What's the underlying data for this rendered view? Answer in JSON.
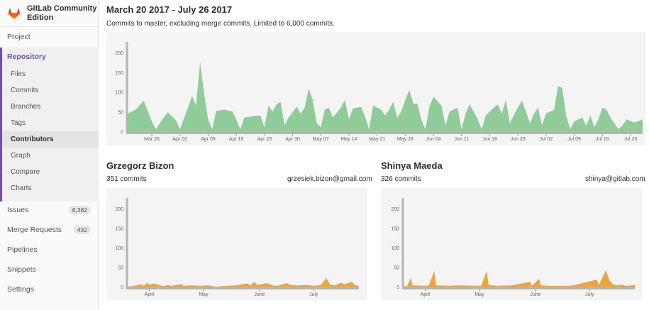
{
  "brand": {
    "name": "GitLab Community Edition"
  },
  "sidebar": {
    "project": "Project",
    "repository": "Repository",
    "repo_items": [
      "Files",
      "Commits",
      "Branches",
      "Tags",
      "Contributors",
      "Graph",
      "Compare",
      "Charts"
    ],
    "issues": {
      "label": "Issues",
      "count": "8,382"
    },
    "merge_requests": {
      "label": "Merge Requests",
      "count": "432"
    },
    "pipelines": "Pipelines",
    "snippets": "Snippets",
    "settings": "Settings"
  },
  "header": {
    "title": "March 20 2017 - July 26 2017",
    "subtitle": "Commits to master, excluding merge commits. Limited to 6,000 commits."
  },
  "contributors": [
    {
      "name": "Grzegorz Bizon",
      "commits": "351 commits",
      "email": "grzesiek.bizon@gmail.com"
    },
    {
      "name": "Shinya Maeda",
      "commits": "326 commits",
      "email": "shinya@gitlab.com"
    }
  ],
  "colors": {
    "main_area": "#8fcc99",
    "contributor_area": "#f0a23c",
    "axis": "#b5b5b5",
    "accent": "#6b4fbb"
  },
  "chart_data": [
    {
      "type": "area",
      "yticks": [
        "0",
        "50",
        "100",
        "150",
        "200"
      ],
      "ylim": [
        0,
        220
      ],
      "xlim": [
        0,
        128
      ],
      "xticks": [
        {
          "label": "Mar 26",
          "day": 6
        },
        {
          "label": "Apr 02",
          "day": 13
        },
        {
          "label": "Apr 09",
          "day": 20
        },
        {
          "label": "Apr 16",
          "day": 27
        },
        {
          "label": "Apr 23",
          "day": 34
        },
        {
          "label": "Apr 30",
          "day": 41
        },
        {
          "label": "May 07",
          "day": 48
        },
        {
          "label": "May 14",
          "day": 55
        },
        {
          "label": "May 21",
          "day": 62
        },
        {
          "label": "May 28",
          "day": 69
        },
        {
          "label": "Jun 04",
          "day": 76
        },
        {
          "label": "Jun 11",
          "day": 83
        },
        {
          "label": "Jun 18",
          "day": 90
        },
        {
          "label": "Jun 25",
          "day": 97
        },
        {
          "label": "Jul 02",
          "day": 104
        },
        {
          "label": "Jul 09",
          "day": 111
        },
        {
          "label": "Jul 16",
          "day": 118
        },
        {
          "label": "Jul 23",
          "day": 125
        }
      ],
      "series": [
        {
          "values": [
            [
              0,
              45
            ],
            [
              2,
              55
            ],
            [
              4,
              78
            ],
            [
              6,
              25
            ],
            [
              7,
              5
            ],
            [
              9,
              35
            ],
            [
              10,
              48
            ],
            [
              12,
              28
            ],
            [
              13,
              5
            ],
            [
              15,
              60
            ],
            [
              16,
              90
            ],
            [
              17,
              65
            ],
            [
              18,
              175
            ],
            [
              19,
              95
            ],
            [
              20,
              30
            ],
            [
              21,
              5
            ],
            [
              22,
              52
            ],
            [
              24,
              55
            ],
            [
              26,
              50
            ],
            [
              27,
              30
            ],
            [
              28,
              5
            ],
            [
              29,
              35
            ],
            [
              31,
              38
            ],
            [
              33,
              40
            ],
            [
              34,
              10
            ],
            [
              35,
              65
            ],
            [
              36,
              50
            ],
            [
              37,
              68
            ],
            [
              38,
              75
            ],
            [
              39,
              15
            ],
            [
              40,
              35
            ],
            [
              42,
              62
            ],
            [
              43,
              45
            ],
            [
              44,
              60
            ],
            [
              45,
              108
            ],
            [
              46,
              80
            ],
            [
              47,
              20
            ],
            [
              48,
              10
            ],
            [
              49,
              55
            ],
            [
              50,
              60
            ],
            [
              51,
              35
            ],
            [
              53,
              60
            ],
            [
              54,
              80
            ],
            [
              55,
              30
            ],
            [
              56,
              58
            ],
            [
              58,
              62
            ],
            [
              59,
              38
            ],
            [
              60,
              5
            ],
            [
              61,
              65
            ],
            [
              63,
              55
            ],
            [
              64,
              40
            ],
            [
              65,
              55
            ],
            [
              66,
              75
            ],
            [
              67,
              35
            ],
            [
              68,
              50
            ],
            [
              69,
              80
            ],
            [
              70,
              105
            ],
            [
              71,
              70
            ],
            [
              72,
              70
            ],
            [
              73,
              30
            ],
            [
              74,
              5
            ],
            [
              75,
              62
            ],
            [
              76,
              88
            ],
            [
              78,
              65
            ],
            [
              79,
              15
            ],
            [
              80,
              50
            ],
            [
              82,
              60
            ],
            [
              83,
              5
            ],
            [
              84,
              45
            ],
            [
              85,
              68
            ],
            [
              86,
              50
            ],
            [
              87,
              30
            ],
            [
              88,
              5
            ],
            [
              89,
              40
            ],
            [
              91,
              60
            ],
            [
              92,
              68
            ],
            [
              93,
              45
            ],
            [
              94,
              80
            ],
            [
              95,
              20
            ],
            [
              96,
              42
            ],
            [
              98,
              78
            ],
            [
              99,
              50
            ],
            [
              100,
              20
            ],
            [
              101,
              45
            ],
            [
              102,
              60
            ],
            [
              103,
              15
            ],
            [
              104,
              45
            ],
            [
              106,
              55
            ],
            [
              107,
              115
            ],
            [
              108,
              110
            ],
            [
              109,
              40
            ],
            [
              110,
              5
            ],
            [
              111,
              25
            ],
            [
              113,
              35
            ],
            [
              114,
              15
            ],
            [
              115,
              40
            ],
            [
              116,
              10
            ],
            [
              117,
              30
            ],
            [
              118,
              60
            ],
            [
              119,
              55
            ],
            [
              120,
              35
            ],
            [
              122,
              5
            ],
            [
              123,
              15
            ],
            [
              124,
              30
            ],
            [
              126,
              22
            ],
            [
              128,
              30
            ]
          ]
        }
      ]
    },
    {
      "type": "area",
      "yticks": [
        "0",
        "50",
        "100",
        "150",
        "200"
      ],
      "ylim": [
        0,
        220
      ],
      "xlim": [
        0,
        128
      ],
      "xticks": [
        {
          "label": "April",
          "day": 12
        },
        {
          "label": "May",
          "day": 42
        },
        {
          "label": "June",
          "day": 73
        },
        {
          "label": "July",
          "day": 103
        }
      ],
      "series": [
        {
          "values": [
            [
              0,
              0
            ],
            [
              5,
              3
            ],
            [
              7,
              6
            ],
            [
              9,
              2
            ],
            [
              11,
              10
            ],
            [
              12,
              4
            ],
            [
              14,
              8
            ],
            [
              16,
              6
            ],
            [
              18,
              3
            ],
            [
              20,
              1
            ],
            [
              22,
              4
            ],
            [
              24,
              2
            ],
            [
              30,
              6
            ],
            [
              31,
              2
            ],
            [
              35,
              3
            ],
            [
              40,
              2
            ],
            [
              45,
              3
            ],
            [
              49,
              0
            ],
            [
              55,
              2
            ],
            [
              60,
              3
            ],
            [
              66,
              8
            ],
            [
              68,
              3
            ],
            [
              70,
              12
            ],
            [
              72,
              4
            ],
            [
              77,
              9
            ],
            [
              80,
              3
            ],
            [
              83,
              2
            ],
            [
              88,
              9
            ],
            [
              90,
              4
            ],
            [
              94,
              3
            ],
            [
              100,
              4
            ],
            [
              103,
              2
            ],
            [
              107,
              4
            ],
            [
              110,
              22
            ],
            [
              112,
              5
            ],
            [
              115,
              3
            ],
            [
              118,
              10
            ],
            [
              120,
              6
            ],
            [
              124,
              12
            ],
            [
              126,
              4
            ],
            [
              128,
              1
            ]
          ]
        }
      ]
    },
    {
      "type": "area",
      "yticks": [
        "0",
        "50",
        "100",
        "150",
        "200"
      ],
      "ylim": [
        0,
        220
      ],
      "xlim": [
        0,
        128
      ],
      "xticks": [
        {
          "label": "April",
          "day": 12
        },
        {
          "label": "May",
          "day": 42
        },
        {
          "label": "June",
          "day": 73
        },
        {
          "label": "July",
          "day": 103
        }
      ],
      "series": [
        {
          "values": [
            [
              0,
              0
            ],
            [
              2,
              2
            ],
            [
              4,
              22
            ],
            [
              5,
              3
            ],
            [
              12,
              2
            ],
            [
              14,
              3
            ],
            [
              17,
              40
            ],
            [
              18,
              3
            ],
            [
              25,
              2
            ],
            [
              30,
              3
            ],
            [
              43,
              2
            ],
            [
              46,
              40
            ],
            [
              47,
              4
            ],
            [
              52,
              2
            ],
            [
              60,
              3
            ],
            [
              70,
              12
            ],
            [
              71,
              2
            ],
            [
              75,
              20
            ],
            [
              76,
              3
            ],
            [
              80,
              2
            ],
            [
              90,
              2
            ],
            [
              94,
              3
            ],
            [
              107,
              18
            ],
            [
              108,
              3
            ],
            [
              112,
              42
            ],
            [
              114,
              15
            ],
            [
              116,
              6
            ],
            [
              118,
              3
            ],
            [
              121,
              5
            ],
            [
              123,
              2
            ],
            [
              128,
              4
            ]
          ]
        }
      ]
    }
  ]
}
